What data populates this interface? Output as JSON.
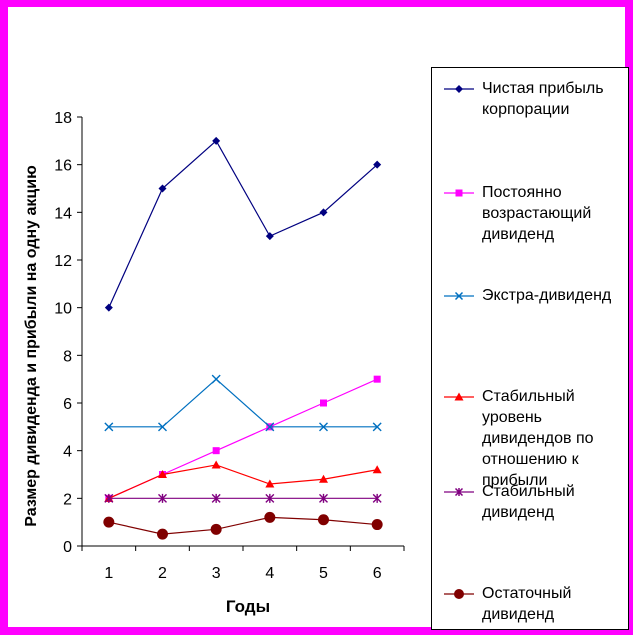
{
  "chart_data": {
    "type": "line",
    "xlabel": "Годы",
    "ylabel": "Размер дивиденда и прибыли на одну акцию",
    "categories": [
      1,
      2,
      3,
      4,
      5,
      6
    ],
    "ylim": [
      0,
      18
    ],
    "yticks": [
      0,
      2,
      4,
      6,
      8,
      10,
      12,
      14,
      16,
      18
    ],
    "grid": false,
    "legend_position": "right",
    "series": [
      {
        "name": "Чистая прибыль корпорации",
        "values": [
          10,
          15,
          17,
          13,
          14,
          16
        ],
        "color": "#000080",
        "marker": "diamond"
      },
      {
        "name": "Постоянно возрастающий дивиденд",
        "values": [
          2,
          3,
          4,
          5,
          6,
          7
        ],
        "color": "#ff00ff",
        "marker": "square"
      },
      {
        "name": "Экстра-дивиденд",
        "values": [
          5,
          5,
          7,
          5,
          5,
          5
        ],
        "color": "#0070c0",
        "marker": "x"
      },
      {
        "name": "Стабильный уровень дивидендов по отношению к прибыли",
        "values": [
          2,
          3,
          3.4,
          2.6,
          2.8,
          3.2
        ],
        "color": "#ff0000",
        "marker": "triangle"
      },
      {
        "name": "Стабильный дивиденд",
        "values": [
          2,
          2,
          2,
          2,
          2,
          2
        ],
        "color": "#800080",
        "marker": "star"
      },
      {
        "name": "Остаточный дивиденд",
        "values": [
          1,
          0.5,
          0.7,
          1.2,
          1.1,
          0.9
        ],
        "color": "#800000",
        "marker": "circle"
      }
    ]
  }
}
